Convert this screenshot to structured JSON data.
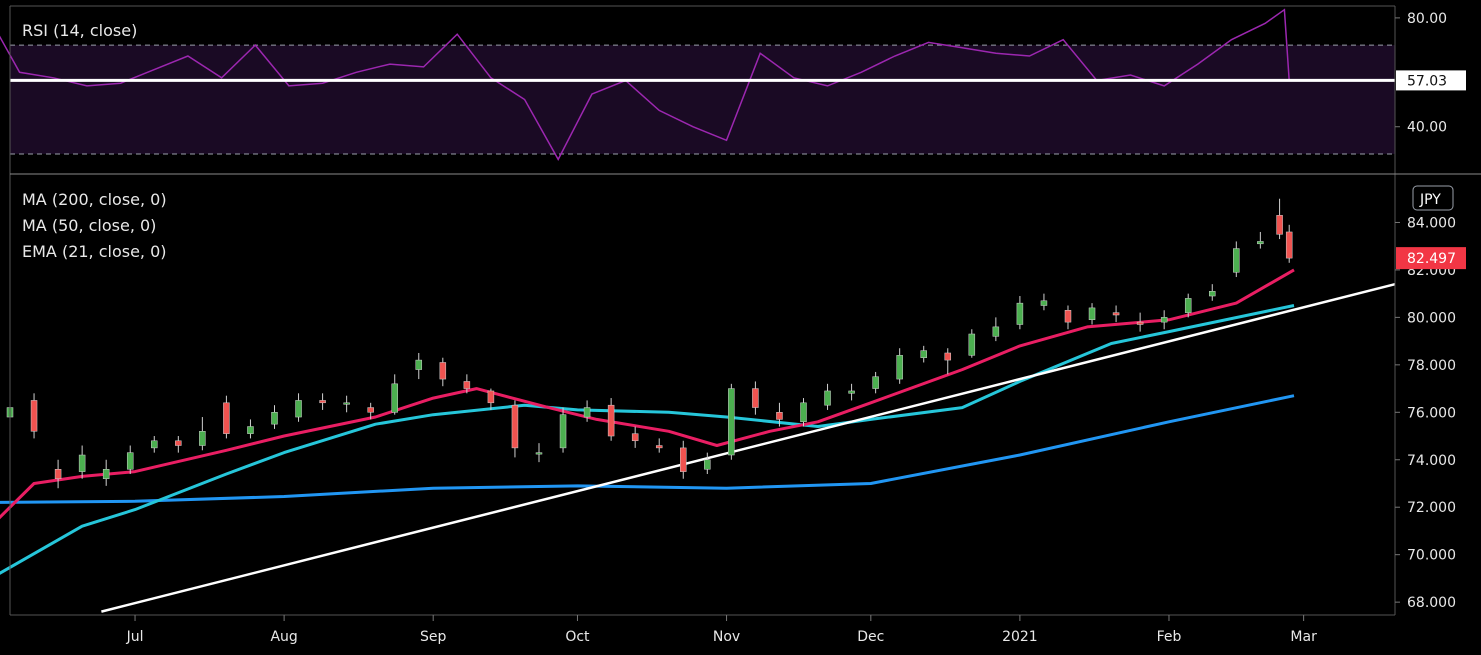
{
  "chart_data": [
    {
      "type": "line",
      "title": "RSI (14, close)",
      "y_ticks": [
        "80.00",
        "40.00"
      ],
      "ylim": [
        23,
        84
      ],
      "bands": [
        70,
        30
      ],
      "last_value_label": "57.03",
      "last_value": 57.03,
      "level_line": 57.03,
      "color": "#9c27b0",
      "fill_color": "#1a0a24",
      "x": [
        "2020-06-01",
        "2020-06-07",
        "2020-06-14",
        "2020-06-21",
        "2020-06-28",
        "2020-07-05",
        "2020-07-12",
        "2020-07-19",
        "2020-07-26",
        "2020-08-02",
        "2020-08-09",
        "2020-08-16",
        "2020-08-23",
        "2020-08-30",
        "2020-09-06",
        "2020-09-13",
        "2020-09-20",
        "2020-09-27",
        "2020-10-04",
        "2020-10-11",
        "2020-10-18",
        "2020-10-25",
        "2020-11-01",
        "2020-11-08",
        "2020-11-15",
        "2020-11-22",
        "2020-11-29",
        "2020-12-06",
        "2020-12-13",
        "2020-12-20",
        "2020-12-27",
        "2021-01-03",
        "2021-01-10",
        "2021-01-17",
        "2021-01-24",
        "2021-01-31",
        "2021-02-07",
        "2021-02-14",
        "2021-02-21",
        "2021-02-25",
        "2021-02-26"
      ],
      "values": [
        79,
        60,
        58,
        55,
        56,
        61,
        66,
        58,
        70,
        55,
        56,
        60,
        63,
        62,
        74,
        58,
        50,
        28,
        52,
        57,
        46,
        40,
        35,
        67,
        58,
        55,
        60,
        66,
        71,
        69,
        67,
        66,
        72,
        57,
        59,
        55,
        63,
        72,
        78,
        83,
        57
      ]
    },
    {
      "type": "candlestick",
      "currency_badge": "JPY",
      "legend": [
        "MA (200, close, 0)",
        "MA (50, close, 0)",
        "EMA (21, close, 0)"
      ],
      "y_ticks": [
        "84.000",
        "82.000",
        "80.000",
        "78.000",
        "76.000",
        "74.000",
        "72.000",
        "70.000",
        "68.000"
      ],
      "ylim": [
        67.5,
        86
      ],
      "last_price_label": "82.497",
      "last_price": 82.497,
      "x_tick_labels": [
        "Jul",
        "Aug",
        "Sep",
        "Oct",
        "Nov",
        "Dec",
        "2021",
        "Feb",
        "Mar"
      ],
      "x_tick_dates": [
        "2020-07-01",
        "2020-08-01",
        "2020-09-01",
        "2020-10-01",
        "2020-11-01",
        "2020-12-01",
        "2021-01-01",
        "2021-02-01",
        "2021-03-01"
      ],
      "x_range": [
        "2020-06-05",
        "2021-03-20"
      ],
      "candle_colors": {
        "up": "#26a69a",
        "up_body": "#4caf50",
        "down": "#ef5350"
      },
      "candles": {
        "dates": [
          "2020-06-05",
          "2020-06-10",
          "2020-06-15",
          "2020-06-20",
          "2020-06-25",
          "2020-06-30",
          "2020-07-05",
          "2020-07-10",
          "2020-07-15",
          "2020-07-20",
          "2020-07-25",
          "2020-07-30",
          "2020-08-04",
          "2020-08-09",
          "2020-08-14",
          "2020-08-19",
          "2020-08-24",
          "2020-08-29",
          "2020-09-03",
          "2020-09-08",
          "2020-09-13",
          "2020-09-18",
          "2020-09-23",
          "2020-09-28",
          "2020-10-03",
          "2020-10-08",
          "2020-10-13",
          "2020-10-18",
          "2020-10-23",
          "2020-10-28",
          "2020-11-02",
          "2020-11-07",
          "2020-11-12",
          "2020-11-17",
          "2020-11-22",
          "2020-11-27",
          "2020-12-02",
          "2020-12-07",
          "2020-12-12",
          "2020-12-17",
          "2020-12-22",
          "2020-12-27",
          "2021-01-01",
          "2021-01-06",
          "2021-01-11",
          "2021-01-16",
          "2021-01-21",
          "2021-01-26",
          "2021-01-31",
          "2021-02-05",
          "2021-02-10",
          "2021-02-15",
          "2021-02-20",
          "2021-02-24",
          "2021-02-26"
        ],
        "open": [
          75.8,
          76.5,
          73.6,
          73.5,
          73.2,
          73.6,
          74.5,
          74.8,
          74.6,
          76.4,
          75.1,
          75.5,
          75.8,
          76.5,
          76.4,
          76.2,
          76.0,
          77.8,
          78.1,
          77.3,
          76.9,
          76.3,
          74.3,
          74.5,
          75.8,
          76.3,
          75.1,
          74.6,
          74.5,
          73.6,
          74.2,
          77.0,
          76.0,
          75.6,
          76.3,
          76.8,
          77.0,
          77.4,
          78.3,
          78.5,
          78.4,
          79.2,
          79.7,
          80.5,
          80.3,
          79.9,
          80.2,
          79.8,
          79.8,
          80.2,
          80.9,
          81.9,
          83.1,
          84.3,
          83.6
        ],
        "close": [
          76.2,
          75.2,
          73.2,
          74.2,
          73.6,
          74.3,
          74.8,
          74.6,
          75.2,
          75.1,
          75.4,
          76.0,
          76.5,
          76.4,
          76.4,
          76.0,
          77.2,
          78.2,
          77.4,
          77.0,
          76.4,
          74.5,
          74.3,
          75.9,
          76.2,
          75.0,
          74.8,
          74.5,
          73.5,
          74.0,
          77.0,
          76.2,
          75.7,
          76.4,
          76.9,
          76.9,
          77.5,
          78.4,
          78.6,
          78.2,
          79.3,
          79.6,
          80.6,
          80.7,
          79.8,
          80.4,
          80.1,
          79.7,
          80.0,
          80.8,
          81.1,
          82.9,
          83.2,
          83.5,
          82.497
        ],
        "high": [
          76.7,
          76.8,
          74.0,
          74.6,
          74.0,
          74.6,
          75.0,
          75.0,
          75.8,
          76.7,
          75.7,
          76.3,
          76.8,
          76.8,
          76.7,
          76.4,
          77.6,
          78.5,
          78.3,
          77.6,
          77.0,
          76.5,
          74.7,
          76.2,
          76.5,
          76.6,
          75.4,
          74.9,
          74.8,
          74.3,
          77.2,
          77.3,
          76.4,
          76.6,
          77.2,
          77.2,
          77.7,
          78.7,
          78.8,
          78.7,
          79.5,
          80.0,
          80.9,
          81.0,
          80.5,
          80.6,
          80.5,
          80.2,
          80.3,
          81.0,
          81.4,
          83.2,
          83.6,
          85.0,
          83.9
        ],
        "low": [
          75.4,
          74.9,
          72.8,
          73.2,
          72.9,
          73.4,
          74.3,
          74.3,
          74.4,
          74.9,
          74.9,
          75.3,
          75.6,
          76.1,
          76.0,
          75.7,
          75.9,
          77.4,
          77.1,
          76.8,
          76.1,
          74.1,
          73.9,
          74.3,
          75.6,
          74.8,
          74.5,
          74.3,
          73.2,
          73.4,
          74.0,
          75.9,
          75.4,
          75.4,
          76.1,
          76.5,
          76.8,
          77.2,
          78.1,
          77.6,
          78.3,
          79.0,
          79.5,
          80.3,
          79.5,
          79.7,
          79.8,
          79.4,
          79.5,
          80.0,
          80.7,
          81.7,
          82.9,
          83.3,
          82.3
        ]
      },
      "series": [
        {
          "name": "MA (200, close, 0)",
          "color": "#2196f3",
          "x": [
            "2020-06-01",
            "2020-07-01",
            "2020-08-01",
            "2020-09-01",
            "2020-10-01",
            "2020-11-01",
            "2020-12-01",
            "2021-01-01",
            "2021-02-01",
            "2021-02-27"
          ],
          "values": [
            72.2,
            72.25,
            72.45,
            72.8,
            72.9,
            72.8,
            73.0,
            74.2,
            75.6,
            76.7
          ]
        },
        {
          "name": "MA (50, close, 0)",
          "color": "#26c6da",
          "x": [
            "2020-06-01",
            "2020-06-20",
            "2020-07-01",
            "2020-07-20",
            "2020-08-01",
            "2020-08-20",
            "2020-09-01",
            "2020-09-20",
            "2020-10-01",
            "2020-10-20",
            "2020-11-01",
            "2020-11-20",
            "2020-12-01",
            "2020-12-20",
            "2021-01-01",
            "2021-01-20",
            "2021-02-01",
            "2021-02-27"
          ],
          "values": [
            69.0,
            71.2,
            71.9,
            73.4,
            74.3,
            75.5,
            75.9,
            76.3,
            76.1,
            76.0,
            75.8,
            75.4,
            75.7,
            76.2,
            77.3,
            78.9,
            79.4,
            80.5
          ]
        },
        {
          "name": "EMA (21, close, 0)",
          "color": "#e91e63",
          "x": [
            "2020-06-01",
            "2020-06-10",
            "2020-06-20",
            "2020-07-01",
            "2020-07-20",
            "2020-08-01",
            "2020-08-20",
            "2020-09-01",
            "2020-09-10",
            "2020-09-25",
            "2020-10-05",
            "2020-10-20",
            "2020-10-30",
            "2020-11-10",
            "2020-11-20",
            "2020-12-01",
            "2020-12-20",
            "2021-01-01",
            "2021-01-15",
            "2021-02-01",
            "2021-02-15",
            "2021-02-27"
          ],
          "values": [
            71.2,
            73.0,
            73.3,
            73.5,
            74.4,
            75.0,
            75.8,
            76.6,
            77.0,
            76.2,
            75.7,
            75.2,
            74.6,
            75.2,
            75.6,
            76.4,
            77.8,
            78.8,
            79.6,
            79.9,
            80.6,
            82.0
          ]
        }
      ],
      "trendline": {
        "color": "#ffffff",
        "x": [
          "2020-06-24",
          "2021-03-20"
        ],
        "values": [
          67.6,
          81.4
        ]
      }
    }
  ]
}
